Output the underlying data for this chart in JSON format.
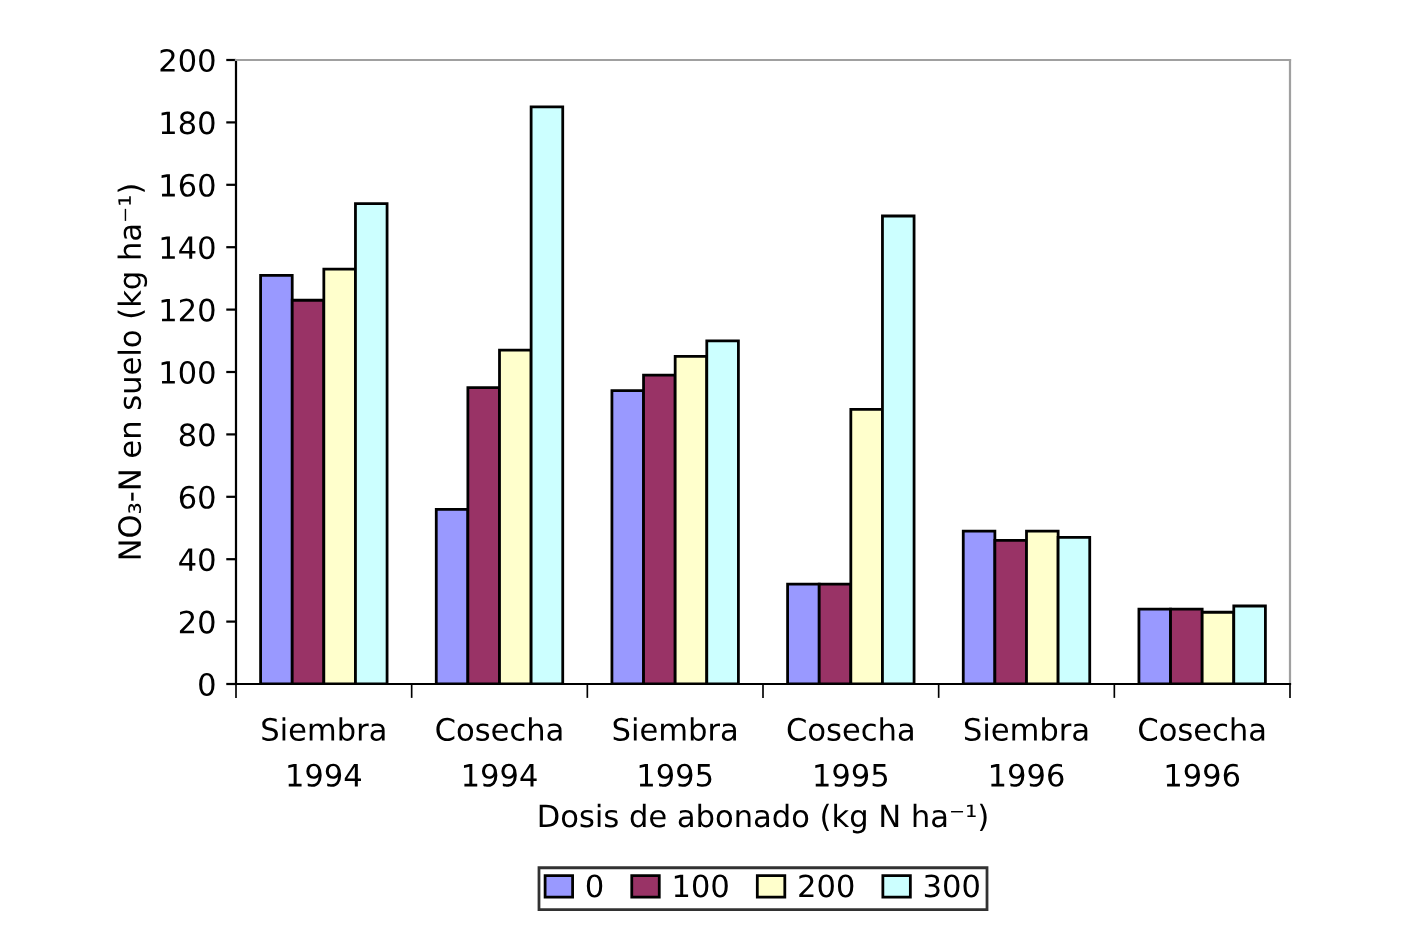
{
  "chart_data": {
    "type": "bar",
    "categories": [
      "Siembra\n1994",
      "Cosecha\n1994",
      "Siembra\n1995",
      "Cosecha\n1995",
      "Siembra\n1996",
      "Cosecha\n1996"
    ],
    "series": [
      {
        "name": "0",
        "color": "#9999ff",
        "values": [
          131,
          56,
          94,
          32,
          49,
          24
        ]
      },
      {
        "name": "100",
        "color": "#993366",
        "values": [
          123,
          95,
          99,
          32,
          46,
          24
        ]
      },
      {
        "name": "200",
        "color": "#ffffcc",
        "values": [
          133,
          107,
          105,
          88,
          49,
          23
        ]
      },
      {
        "name": "300",
        "color": "#ccffff",
        "values": [
          154,
          185,
          110,
          150,
          47,
          25
        ]
      }
    ],
    "xlabel": "Dosis de abonado (kg N ha⁻¹)",
    "ylabel": "NO₃-N en suelo (kg ha⁻¹)",
    "ylim": [
      0,
      200
    ],
    "yticks": [
      0,
      20,
      40,
      60,
      80,
      100,
      120,
      140,
      160,
      180,
      200
    ],
    "grid": false,
    "legend": "bottom"
  }
}
